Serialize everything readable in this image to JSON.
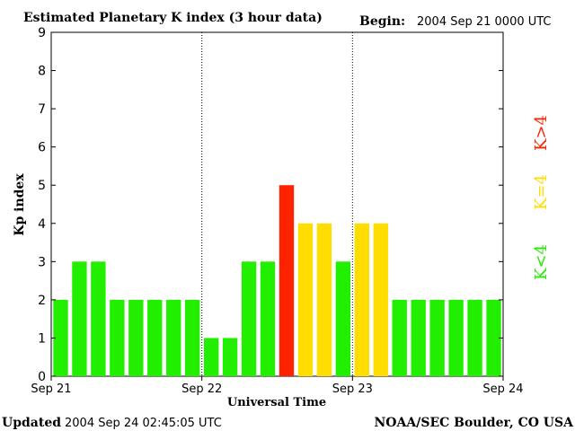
{
  "header": {
    "title": "Estimated Planetary K index (3 hour data)",
    "begin_label": "Begin:",
    "begin_value": "2004 Sep 21 0000 UTC"
  },
  "footer": {
    "updated_label": "Updated",
    "updated_value": "2004 Sep 24 02:45:05 UTC",
    "credit": "NOAA/SEC Boulder, CO USA"
  },
  "legend": {
    "low": "K<4",
    "equal": "K=4",
    "high": "K>4"
  },
  "colors": {
    "low": "#22ee00",
    "equal": "#ffdd00",
    "high": "#ff2200",
    "axis": "#000000",
    "divider": "#000000"
  },
  "chart_data": {
    "type": "bar",
    "title": "Estimated Planetary K index (3 hour data)",
    "xlabel": "Universal Time",
    "ylabel": "Kp index",
    "ylim": [
      0,
      9
    ],
    "yticks": [
      0,
      1,
      2,
      3,
      4,
      5,
      6,
      7,
      8,
      9
    ],
    "x_tick_labels": [
      "Sep 21",
      "Sep 22",
      "Sep 23",
      "Sep 24"
    ],
    "bars_per_day": 8,
    "values": [
      2,
      3,
      3,
      2,
      2,
      2,
      2,
      2,
      1,
      1,
      3,
      3,
      5,
      4,
      4,
      3,
      4,
      4,
      2,
      2,
      2,
      2,
      2,
      2
    ],
    "grid": false,
    "day_dividers": "dotted"
  }
}
